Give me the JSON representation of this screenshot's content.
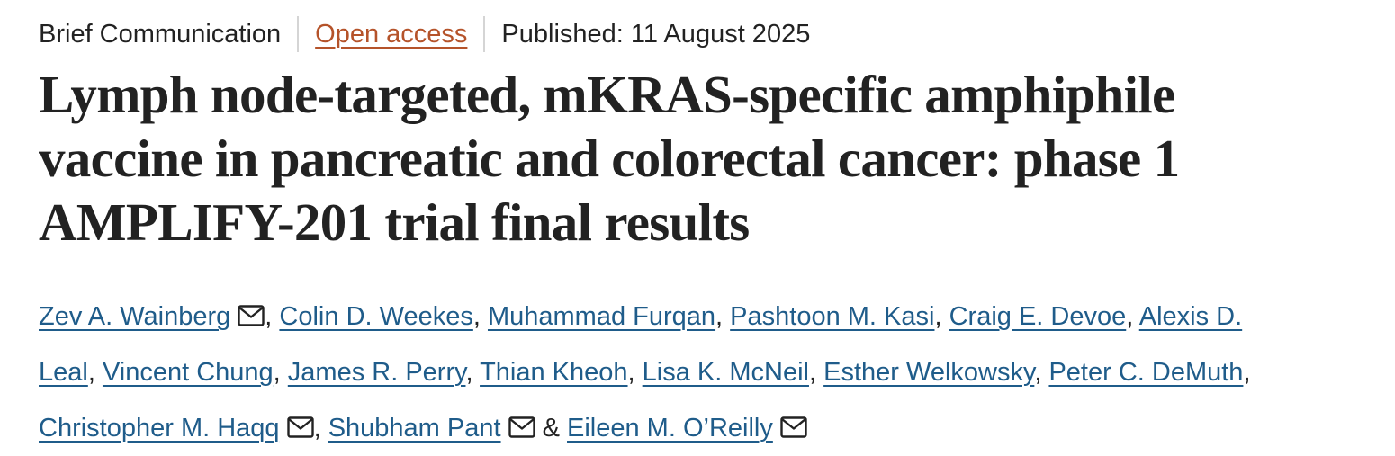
{
  "meta": {
    "article_type": "Brief Communication",
    "access": "Open access",
    "published": "Published: 11 August 2025"
  },
  "title": {
    "line1": "Lymph node-targeted, mKRAS-specific amphiphile",
    "line2": "vaccine in pancreatic and colorectal cancer: phase 1",
    "line3": "AMPLIFY-201 trial final results"
  },
  "authors": {
    "a1": "Zev A. Wainberg",
    "a2": "Colin D. Weekes",
    "a3": "Muhammad Furqan",
    "a4": "Pashtoon M. Kasi",
    "a5": "Craig E. Devoe",
    "a6_part1": "Alexis D.",
    "a6_part2": "Leal",
    "a7": "Vincent Chung",
    "a8": "James R. Perry",
    "a9": "Thian Kheoh",
    "a10": "Lisa K. McNeil",
    "a11": "Esther Welkowsky",
    "a12": "Peter C. DeMuth",
    "a13": "Christopher M. Haqq",
    "a14": "Shubham Pant",
    "a15": "Eileen M. O’Reilly",
    "comma": ", ",
    "ampersand": " & "
  },
  "icons": {
    "mail": "mail-icon"
  },
  "colors": {
    "open_access": "#b5532a",
    "author_link": "#1f5c8a",
    "text": "#222222"
  }
}
